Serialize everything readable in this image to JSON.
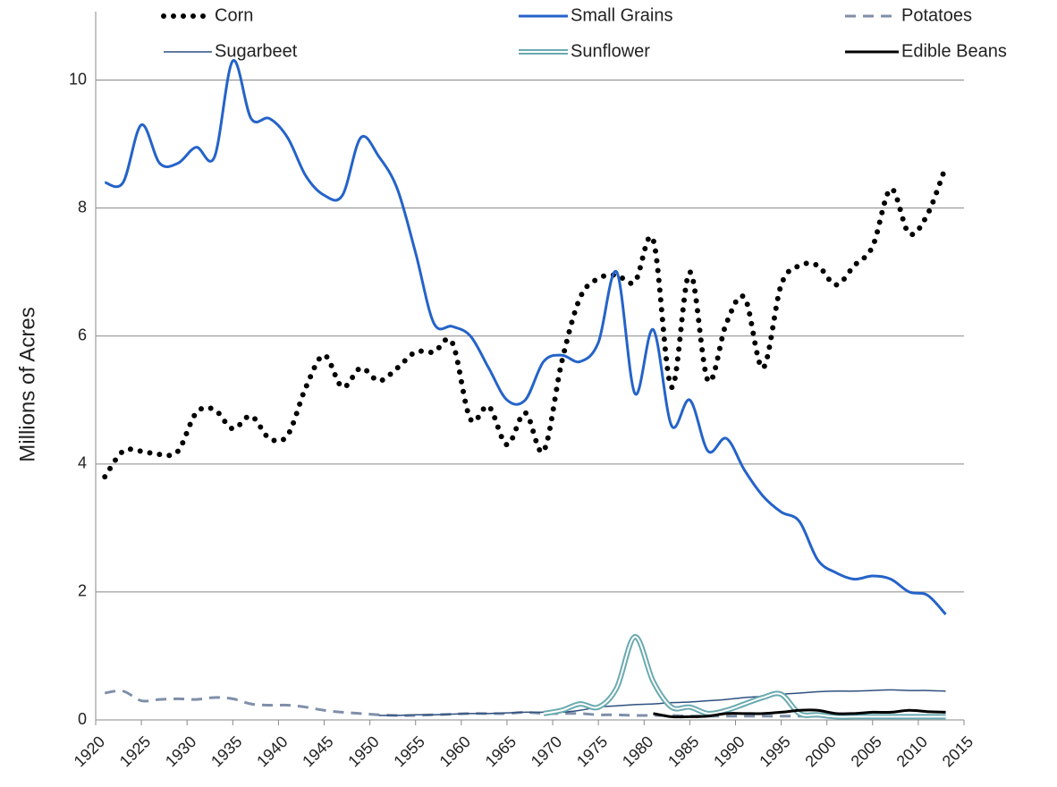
{
  "chart_data": {
    "type": "line",
    "y_label": "Millions of Acres",
    "x": [
      1921,
      1923,
      1925,
      1927,
      1929,
      1931,
      1933,
      1935,
      1937,
      1939,
      1941,
      1943,
      1945,
      1947,
      1949,
      1951,
      1953,
      1955,
      1957,
      1959,
      1961,
      1963,
      1965,
      1967,
      1969,
      1971,
      1973,
      1975,
      1977,
      1979,
      1981,
      1983,
      1985,
      1987,
      1989,
      1991,
      1993,
      1995,
      1997,
      1999,
      2001,
      2003,
      2005,
      2007,
      2009,
      2011,
      2013
    ],
    "xlim": [
      1920,
      2015
    ],
    "xticks": [
      1920,
      1925,
      1930,
      1935,
      1940,
      1945,
      1950,
      1955,
      1960,
      1965,
      1970,
      1975,
      1980,
      1985,
      1990,
      1995,
      2000,
      2005,
      2010,
      2015
    ],
    "ylim": [
      0,
      11
    ],
    "yticks": [
      0,
      2,
      4,
      6,
      8,
      10
    ],
    "grid": true,
    "legend": "top",
    "series": [
      {
        "name": "Corn",
        "color": "#000000",
        "style": "dotted",
        "values": [
          3.8,
          4.2,
          4.2,
          4.15,
          4.2,
          4.8,
          4.85,
          4.55,
          4.75,
          4.4,
          4.45,
          5.2,
          5.7,
          5.2,
          5.5,
          5.3,
          5.5,
          5.75,
          5.75,
          5.9,
          4.7,
          4.9,
          4.3,
          4.8,
          4.2,
          5.6,
          6.6,
          6.9,
          6.95,
          6.85,
          7.5,
          5.2,
          7.0,
          5.3,
          6.2,
          6.6,
          5.5,
          6.8,
          7.1,
          7.1,
          6.8,
          7.1,
          7.4,
          8.3,
          7.6,
          7.9,
          8.65
        ]
      },
      {
        "name": "Small Grains",
        "color": "#2463c9",
        "style": "solid",
        "values": [
          8.4,
          8.4,
          9.3,
          8.7,
          8.7,
          8.95,
          8.8,
          10.3,
          9.4,
          9.4,
          9.1,
          8.5,
          8.2,
          8.2,
          9.1,
          8.8,
          8.3,
          7.3,
          6.2,
          6.15,
          6.0,
          5.5,
          5.0,
          5.0,
          5.6,
          5.7,
          5.6,
          5.9,
          7.0,
          5.1,
          6.1,
          4.6,
          5.0,
          4.2,
          4.4,
          3.9,
          3.5,
          3.25,
          3.1,
          2.5,
          2.3,
          2.2,
          2.25,
          2.2,
          2.0,
          1.95,
          1.65
        ]
      },
      {
        "name": "Potatoes",
        "color": "#7f8fa9",
        "style": "dashed",
        "values": [
          0.42,
          0.45,
          0.3,
          0.32,
          0.33,
          0.32,
          0.35,
          0.33,
          0.25,
          0.23,
          0.23,
          0.2,
          0.15,
          0.12,
          0.1,
          0.08,
          0.07,
          0.07,
          0.08,
          0.09,
          0.1,
          0.1,
          0.1,
          0.12,
          0.1,
          0.1,
          0.1,
          0.08,
          0.08,
          0.07,
          0.07,
          0.07,
          0.06,
          0.06,
          0.06,
          0.06,
          0.06,
          0.06,
          0.06,
          0.06,
          0.06,
          0.06,
          0.06,
          0.06,
          0.06,
          0.06,
          0.06
        ]
      },
      {
        "name": "Sugarbeet",
        "color": "#2f4f7f",
        "style": "thin",
        "values": [
          null,
          null,
          null,
          null,
          null,
          null,
          null,
          null,
          null,
          null,
          null,
          null,
          null,
          null,
          null,
          0.07,
          0.07,
          0.08,
          0.08,
          0.09,
          0.1,
          0.1,
          0.11,
          0.12,
          0.12,
          0.12,
          0.15,
          0.2,
          0.22,
          0.24,
          0.25,
          0.27,
          0.28,
          0.3,
          0.32,
          0.35,
          0.37,
          0.4,
          0.42,
          0.44,
          0.45,
          0.45,
          0.46,
          0.47,
          0.46,
          0.46,
          0.45
        ]
      },
      {
        "name": "Sunflower",
        "color": "#6aaab0",
        "style": "double",
        "values": [
          null,
          null,
          null,
          null,
          null,
          null,
          null,
          null,
          null,
          null,
          null,
          null,
          null,
          null,
          null,
          null,
          null,
          null,
          null,
          null,
          null,
          null,
          null,
          null,
          0.1,
          0.15,
          0.25,
          0.2,
          0.5,
          1.3,
          0.6,
          0.2,
          0.2,
          0.1,
          0.15,
          0.25,
          0.35,
          0.4,
          0.1,
          0.08,
          0.05,
          0.05,
          0.05,
          0.05,
          0.05,
          0.05,
          0.05
        ]
      },
      {
        "name": "Edible Beans",
        "color": "#000000",
        "style": "solid",
        "values": [
          null,
          null,
          null,
          null,
          null,
          null,
          null,
          null,
          null,
          null,
          null,
          null,
          null,
          null,
          null,
          null,
          null,
          null,
          null,
          null,
          null,
          null,
          null,
          null,
          null,
          null,
          null,
          null,
          null,
          null,
          0.1,
          0.05,
          0.05,
          0.06,
          0.1,
          0.1,
          0.1,
          0.12,
          0.15,
          0.15,
          0.1,
          0.1,
          0.12,
          0.12,
          0.15,
          0.13,
          0.12
        ]
      }
    ]
  }
}
